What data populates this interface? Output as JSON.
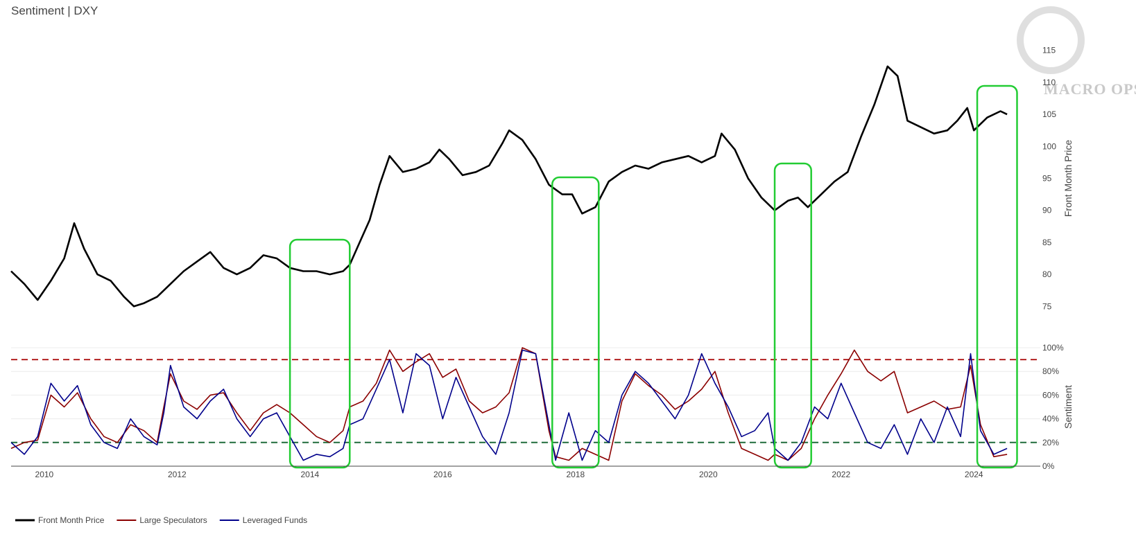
{
  "chart_data": {
    "type": "line",
    "title": "Sentiment | DXY",
    "logo_text": "MACRO OPS",
    "colors": {
      "price": "#000000",
      "large_speculators": "#8b0000",
      "leveraged_funds": "#00008b",
      "upper_threshold": "#b22222",
      "lower_threshold": "#1e6b3a",
      "highlight_box": "#22cc33",
      "grid": "#ececec"
    },
    "x_ticks": [
      "2010",
      "2012",
      "2014",
      "2016",
      "2018",
      "2020",
      "2022",
      "2024"
    ],
    "xlim": [
      2009.5,
      2025.0
    ],
    "price_axis": {
      "title": "Front Month Price",
      "ticks": [
        75,
        80,
        85,
        90,
        95,
        100,
        105,
        110,
        115
      ],
      "range": [
        72,
        118
      ]
    },
    "sentiment_axis": {
      "title": "Sentiment",
      "tick_labels": [
        "0%",
        "20%",
        "40%",
        "60%",
        "80%",
        "100%"
      ],
      "ticks": [
        0,
        20,
        40,
        60,
        80,
        100
      ],
      "range": [
        0,
        100
      ],
      "upper_threshold": 90,
      "lower_threshold": 20
    },
    "highlight_periods": [
      {
        "x0": 2013.7,
        "x1": 2014.6
      },
      {
        "x0": 2017.65,
        "x1": 2018.35
      },
      {
        "x0": 2021.0,
        "x1": 2021.55
      },
      {
        "x0": 2024.05,
        "x1": 2024.65
      }
    ],
    "series": [
      {
        "name": "Front Month Price",
        "key": "price",
        "x": [
          2009.5,
          2009.7,
          2009.9,
          2010.1,
          2010.3,
          2010.45,
          2010.6,
          2010.8,
          2011.0,
          2011.2,
          2011.35,
          2011.5,
          2011.7,
          2011.9,
          2012.1,
          2012.3,
          2012.5,
          2012.7,
          2012.9,
          2013.1,
          2013.3,
          2013.5,
          2013.7,
          2013.9,
          2014.1,
          2014.3,
          2014.5,
          2014.6,
          2014.75,
          2014.9,
          2015.05,
          2015.2,
          2015.4,
          2015.6,
          2015.8,
          2015.95,
          2016.1,
          2016.3,
          2016.5,
          2016.7,
          2016.9,
          2017.0,
          2017.2,
          2017.4,
          2017.6,
          2017.8,
          2017.95,
          2018.1,
          2018.3,
          2018.5,
          2018.7,
          2018.9,
          2019.1,
          2019.3,
          2019.5,
          2019.7,
          2019.9,
          2020.1,
          2020.2,
          2020.4,
          2020.6,
          2020.8,
          2021.0,
          2021.2,
          2021.35,
          2021.5,
          2021.7,
          2021.9,
          2022.1,
          2022.3,
          2022.5,
          2022.7,
          2022.85,
          2023.0,
          2023.2,
          2023.4,
          2023.6,
          2023.75,
          2023.9,
          2024.0,
          2024.2,
          2024.4,
          2024.5
        ],
        "values": [
          80.5,
          78.5,
          76.0,
          79.0,
          82.5,
          88.0,
          84.0,
          80.0,
          79.0,
          76.5,
          75.0,
          75.5,
          76.5,
          78.5,
          80.5,
          82.0,
          83.5,
          81.0,
          80.0,
          81.0,
          83.0,
          82.5,
          81.0,
          80.5,
          80.5,
          80.0,
          80.5,
          81.5,
          85.0,
          88.5,
          94.0,
          98.5,
          96.0,
          96.5,
          97.5,
          99.5,
          98.0,
          95.5,
          96.0,
          97.0,
          100.5,
          102.5,
          101.0,
          98.0,
          94.0,
          92.5,
          92.5,
          89.5,
          90.5,
          94.5,
          96.0,
          97.0,
          96.5,
          97.5,
          98.0,
          98.5,
          97.5,
          98.5,
          102.0,
          99.5,
          95.0,
          92.0,
          90.0,
          91.5,
          92.0,
          90.5,
          92.5,
          94.5,
          96.0,
          101.5,
          106.5,
          112.5,
          111.0,
          104.0,
          103.0,
          102.0,
          102.5,
          104.0,
          106.0,
          102.5,
          104.5,
          105.5,
          105.0
        ]
      },
      {
        "name": "Large Speculators",
        "key": "large_speculators",
        "x": [
          2009.5,
          2009.7,
          2009.9,
          2010.1,
          2010.3,
          2010.5,
          2010.7,
          2010.9,
          2011.1,
          2011.3,
          2011.5,
          2011.7,
          2011.8,
          2011.9,
          2012.1,
          2012.3,
          2012.5,
          2012.7,
          2012.9,
          2013.1,
          2013.3,
          2013.5,
          2013.7,
          2013.9,
          2014.1,
          2014.3,
          2014.5,
          2014.6,
          2014.8,
          2015.0,
          2015.2,
          2015.4,
          2015.6,
          2015.8,
          2016.0,
          2016.2,
          2016.4,
          2016.6,
          2016.8,
          2017.0,
          2017.2,
          2017.4,
          2017.6,
          2017.7,
          2017.9,
          2018.1,
          2018.3,
          2018.5,
          2018.7,
          2018.9,
          2019.1,
          2019.3,
          2019.5,
          2019.7,
          2019.9,
          2020.1,
          2020.3,
          2020.5,
          2020.7,
          2020.9,
          2021.0,
          2021.2,
          2021.4,
          2021.6,
          2021.8,
          2022.0,
          2022.2,
          2022.4,
          2022.6,
          2022.8,
          2023.0,
          2023.2,
          2023.4,
          2023.6,
          2023.8,
          2023.95,
          2024.1,
          2024.3,
          2024.5
        ],
        "values": [
          15,
          20,
          22,
          60,
          50,
          62,
          40,
          25,
          20,
          35,
          30,
          20,
          50,
          78,
          55,
          48,
          60,
          62,
          45,
          30,
          45,
          52,
          45,
          35,
          25,
          20,
          30,
          50,
          55,
          70,
          98,
          80,
          88,
          95,
          75,
          82,
          55,
          45,
          50,
          62,
          100,
          95,
          30,
          8,
          5,
          15,
          10,
          5,
          55,
          78,
          68,
          60,
          48,
          55,
          65,
          80,
          45,
          15,
          10,
          5,
          10,
          5,
          15,
          40,
          60,
          78,
          98,
          80,
          72,
          80,
          45,
          50,
          55,
          48,
          50,
          85,
          35,
          8,
          10
        ]
      },
      {
        "name": "Leveraged Funds",
        "key": "leveraged_funds",
        "x": [
          2009.5,
          2009.7,
          2009.9,
          2010.1,
          2010.3,
          2010.5,
          2010.7,
          2010.9,
          2011.1,
          2011.3,
          2011.5,
          2011.7,
          2011.8,
          2011.9,
          2012.1,
          2012.3,
          2012.5,
          2012.7,
          2012.9,
          2013.1,
          2013.3,
          2013.5,
          2013.7,
          2013.9,
          2014.1,
          2014.3,
          2014.5,
          2014.6,
          2014.8,
          2015.0,
          2015.2,
          2015.4,
          2015.6,
          2015.8,
          2016.0,
          2016.2,
          2016.4,
          2016.6,
          2016.8,
          2017.0,
          2017.2,
          2017.4,
          2017.6,
          2017.7,
          2017.9,
          2018.1,
          2018.3,
          2018.5,
          2018.7,
          2018.9,
          2019.1,
          2019.3,
          2019.5,
          2019.7,
          2019.9,
          2020.1,
          2020.3,
          2020.5,
          2020.7,
          2020.9,
          2021.0,
          2021.2,
          2021.4,
          2021.6,
          2021.8,
          2022.0,
          2022.2,
          2022.4,
          2022.6,
          2022.8,
          2023.0,
          2023.2,
          2023.4,
          2023.6,
          2023.8,
          2023.95,
          2024.1,
          2024.3,
          2024.5
        ],
        "values": [
          20,
          10,
          25,
          70,
          55,
          68,
          35,
          20,
          15,
          40,
          25,
          18,
          45,
          85,
          50,
          40,
          55,
          65,
          40,
          25,
          40,
          45,
          25,
          5,
          10,
          8,
          15,
          35,
          40,
          65,
          90,
          45,
          95,
          85,
          40,
          75,
          50,
          25,
          10,
          45,
          98,
          95,
          35,
          5,
          45,
          5,
          30,
          20,
          60,
          80,
          70,
          55,
          40,
          60,
          95,
          70,
          50,
          25,
          30,
          45,
          15,
          5,
          20,
          50,
          40,
          70,
          45,
          20,
          15,
          35,
          10,
          40,
          20,
          50,
          25,
          95,
          30,
          10,
          15
        ]
      }
    ],
    "legend": [
      {
        "label": "Front Month Price",
        "key": "price"
      },
      {
        "label": "Large Speculators",
        "key": "large_speculators"
      },
      {
        "label": "Leveraged Funds",
        "key": "leveraged_funds"
      }
    ],
    "legend_position": "bottom-left"
  }
}
